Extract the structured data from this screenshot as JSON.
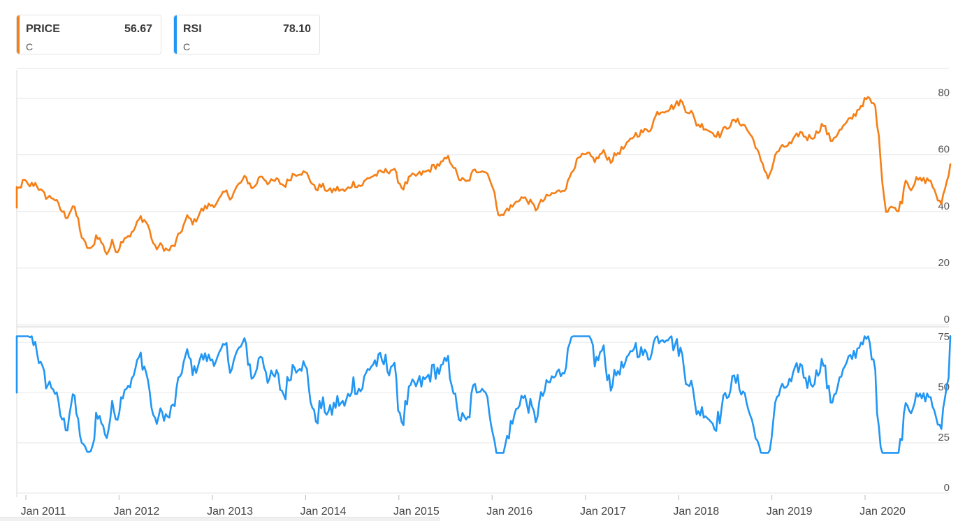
{
  "legend": [
    {
      "name": "PRICE",
      "value": "56.67",
      "ticker": "C",
      "color": "#f57f17"
    },
    {
      "name": "RSI",
      "value": "78.10",
      "ticker": "C",
      "color": "#2196f3"
    }
  ],
  "chart_data": [
    {
      "type": "line",
      "panel": "price",
      "series": [
        {
          "name": "PRICE",
          "color": "#f57f17"
        }
      ],
      "ylim": [
        0,
        90
      ],
      "yticks": [
        0,
        20,
        40,
        60,
        80
      ],
      "grid": true,
      "x_start": "2010-11",
      "x_end": "2020-11",
      "sampling": "weekly",
      "anchors": [
        [
          "2010-11-01",
          41
        ],
        [
          "2010-11-10",
          47
        ],
        [
          "2010-12-05",
          48
        ],
        [
          "2010-12-25",
          51
        ],
        [
          "2011-01-10",
          49
        ],
        [
          "2011-02-10",
          50
        ],
        [
          "2011-03-01",
          47
        ],
        [
          "2011-03-25",
          45
        ],
        [
          "2011-04-20",
          45
        ],
        [
          "2011-05-15",
          41
        ],
        [
          "2011-06-10",
          38
        ],
        [
          "2011-07-05",
          42
        ],
        [
          "2011-07-25",
          37
        ],
        [
          "2011-08-10",
          30
        ],
        [
          "2011-08-25",
          28
        ],
        [
          "2011-09-15",
          26
        ],
        [
          "2011-10-05",
          32
        ],
        [
          "2011-10-25",
          29
        ],
        [
          "2011-11-15",
          25
        ],
        [
          "2011-12-05",
          29
        ],
        [
          "2011-12-25",
          26
        ],
        [
          "2012-01-20",
          31
        ],
        [
          "2012-02-20",
          32
        ],
        [
          "2012-03-25",
          38
        ],
        [
          "2012-04-20",
          36
        ],
        [
          "2012-05-20",
          27
        ],
        [
          "2012-06-15",
          28
        ],
        [
          "2012-07-10",
          26
        ],
        [
          "2012-08-05",
          28
        ],
        [
          "2012-08-30",
          33
        ],
        [
          "2012-09-25",
          38
        ],
        [
          "2012-10-20",
          36
        ],
        [
          "2012-11-15",
          40
        ],
        [
          "2012-12-15",
          42
        ],
        [
          "2013-01-20",
          43
        ],
        [
          "2013-02-20",
          47
        ],
        [
          "2013-03-15",
          45
        ],
        [
          "2013-04-10",
          49
        ],
        [
          "2013-05-10",
          52
        ],
        [
          "2013-06-10",
          48
        ],
        [
          "2013-07-10",
          53
        ],
        [
          "2013-08-10",
          50
        ],
        [
          "2013-09-10",
          51
        ],
        [
          "2013-10-10",
          49
        ],
        [
          "2013-11-10",
          53
        ],
        [
          "2013-12-10",
          54
        ],
        [
          "2014-01-10",
          53
        ],
        [
          "2014-02-05",
          48
        ],
        [
          "2014-03-05",
          49
        ],
        [
          "2014-04-05",
          47
        ],
        [
          "2014-05-05",
          48
        ],
        [
          "2014-06-05",
          47
        ],
        [
          "2014-07-05",
          50
        ],
        [
          "2014-08-05",
          49
        ],
        [
          "2014-09-05",
          52
        ],
        [
          "2014-10-05",
          53
        ],
        [
          "2014-11-05",
          54
        ],
        [
          "2014-12-10",
          55
        ],
        [
          "2015-01-15",
          48
        ],
        [
          "2015-02-15",
          52
        ],
        [
          "2015-03-20",
          53
        ],
        [
          "2015-04-20",
          54
        ],
        [
          "2015-05-20",
          56
        ],
        [
          "2015-06-20",
          57
        ],
        [
          "2015-07-10",
          59
        ],
        [
          "2015-07-30",
          57
        ],
        [
          "2015-08-20",
          52
        ],
        [
          "2015-09-25",
          50
        ],
        [
          "2015-10-20",
          54
        ],
        [
          "2015-11-20",
          55
        ],
        [
          "2015-12-20",
          53
        ],
        [
          "2016-01-10",
          46
        ],
        [
          "2016-01-25",
          40
        ],
        [
          "2016-02-10",
          38
        ],
        [
          "2016-03-01",
          41
        ],
        [
          "2016-03-25",
          42
        ],
        [
          "2016-04-20",
          45
        ],
        [
          "2016-05-20",
          44
        ],
        [
          "2016-06-20",
          41
        ],
        [
          "2016-07-20",
          44
        ],
        [
          "2016-08-20",
          46
        ],
        [
          "2016-09-20",
          47
        ],
        [
          "2016-10-20",
          49
        ],
        [
          "2016-11-10",
          55
        ],
        [
          "2016-12-10",
          59
        ],
        [
          "2017-01-10",
          60
        ],
        [
          "2017-02-10",
          58
        ],
        [
          "2017-03-10",
          61
        ],
        [
          "2017-04-10",
          58
        ],
        [
          "2017-05-10",
          61
        ],
        [
          "2017-06-10",
          63
        ],
        [
          "2017-07-10",
          67
        ],
        [
          "2017-08-10",
          68
        ],
        [
          "2017-09-10",
          69
        ],
        [
          "2017-10-10",
          75
        ],
        [
          "2017-11-10",
          76
        ],
        [
          "2017-12-10",
          77
        ],
        [
          "2018-01-10",
          79
        ],
        [
          "2018-01-30",
          76
        ],
        [
          "2018-02-20",
          75
        ],
        [
          "2018-03-10",
          71
        ],
        [
          "2018-04-10",
          70
        ],
        [
          "2018-05-10",
          68
        ],
        [
          "2018-06-10",
          67
        ],
        [
          "2018-07-10",
          70
        ],
        [
          "2018-08-10",
          72
        ],
        [
          "2018-09-10",
          71
        ],
        [
          "2018-10-10",
          67
        ],
        [
          "2018-11-01",
          63
        ],
        [
          "2018-11-20",
          57
        ],
        [
          "2018-12-20",
          52
        ],
        [
          "2019-01-20",
          61
        ],
        [
          "2019-02-20",
          63
        ],
        [
          "2019-03-20",
          64
        ],
        [
          "2019-04-20",
          68
        ],
        [
          "2019-05-20",
          66
        ],
        [
          "2019-06-20",
          67
        ],
        [
          "2019-07-20",
          71
        ],
        [
          "2019-08-20",
          65
        ],
        [
          "2019-09-20",
          68
        ],
        [
          "2019-10-20",
          71
        ],
        [
          "2019-11-20",
          74
        ],
        [
          "2019-12-20",
          78
        ],
        [
          "2020-01-10",
          80
        ],
        [
          "2020-02-10",
          77
        ],
        [
          "2020-02-25",
          65
        ],
        [
          "2020-03-10",
          50
        ],
        [
          "2020-03-22",
          40
        ],
        [
          "2020-04-10",
          42
        ],
        [
          "2020-05-05",
          40
        ],
        [
          "2020-05-25",
          44
        ],
        [
          "2020-06-08",
          52
        ],
        [
          "2020-06-25",
          48
        ],
        [
          "2020-07-20",
          51
        ],
        [
          "2020-08-20",
          51
        ],
        [
          "2020-09-15",
          51
        ],
        [
          "2020-10-05",
          45
        ],
        [
          "2020-10-25",
          43
        ],
        [
          "2020-11-15",
          50
        ],
        [
          "2020-11-30",
          57
        ]
      ],
      "final_value": 56.67
    },
    {
      "type": "line",
      "panel": "rsi",
      "series": [
        {
          "name": "RSI",
          "color": "#2196f3"
        }
      ],
      "ylim": [
        0,
        82
      ],
      "yticks": [
        0,
        25,
        50,
        75
      ],
      "grid": true,
      "x_start": "2010-11",
      "x_end": "2020-11",
      "sampling": "weekly",
      "range_approx": [
        20,
        78
      ],
      "final_value": 78.1
    }
  ],
  "x_axis": {
    "labels": [
      "Jan 2011",
      "Jan 2012",
      "Jan 2013",
      "Jan 2014",
      "Jan 2015",
      "Jan 2016",
      "Jan 2017",
      "Jan 2018",
      "Jan 2019",
      "Jan 2020"
    ],
    "dates": [
      "2011-01-01",
      "2012-01-01",
      "2013-01-01",
      "2014-01-01",
      "2015-01-01",
      "2016-01-01",
      "2017-01-01",
      "2018-01-01",
      "2019-01-01",
      "2020-01-01"
    ]
  }
}
